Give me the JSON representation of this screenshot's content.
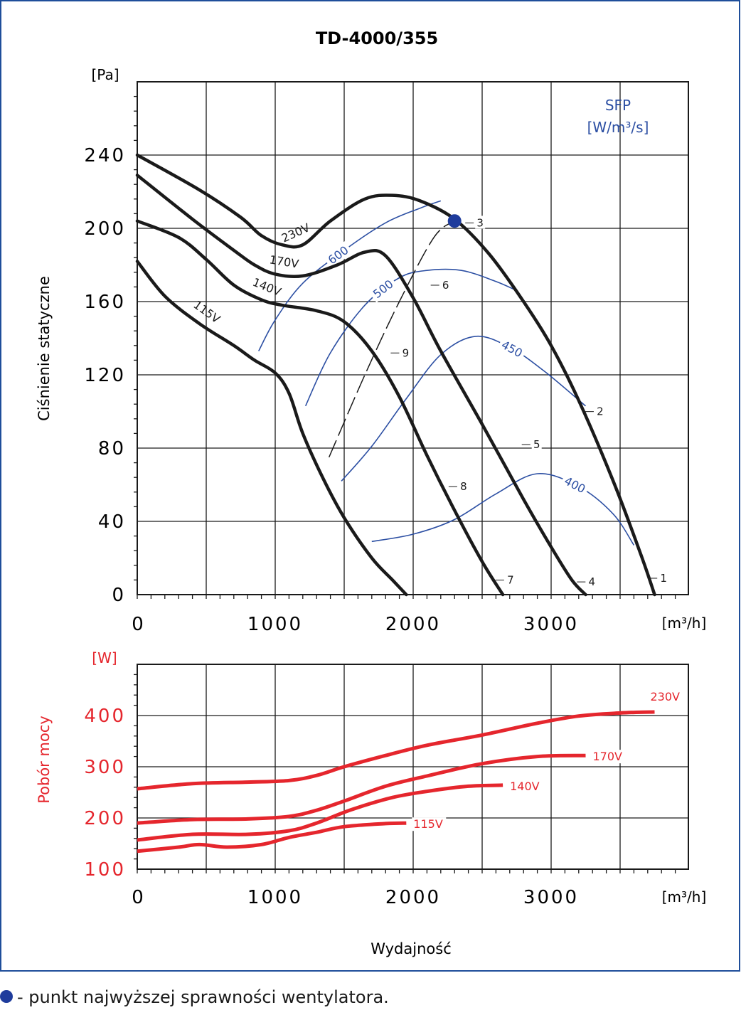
{
  "colors": {
    "frame": "#1f4e9a",
    "sfp": "#2c4fa3",
    "power": "#e5262d",
    "curve": "#1a1a1a",
    "bep": "#1f3c9c"
  },
  "footnote": "- punkt najwyższej sprawności wentylatora.",
  "chart_data": [
    {
      "type": "line",
      "title": "TD-4000/355",
      "ylabel": "Ciśnienie statyczne",
      "xlabel": "",
      "y_unit": "[Pa]",
      "x_unit": "[m³/h]",
      "sfp_label": "SFP",
      "sfp_unit": "[W/m³/s]",
      "xlim": [
        0,
        4000
      ],
      "ylim": [
        0,
        280
      ],
      "x_ticks": [
        "0",
        "1000",
        "2000",
        "3000"
      ],
      "y_ticks": [
        "0",
        "40",
        "80",
        "120",
        "160",
        "200",
        "240"
      ],
      "grid": true,
      "series": [
        {
          "name": "230V",
          "x": [
            0,
            450,
            750,
            900,
            1050,
            1200,
            1400,
            1650,
            1850,
            2050,
            2300,
            2550,
            2800,
            3000,
            3200,
            3450,
            3650,
            3750
          ],
          "y": [
            240,
            221,
            206,
            196,
            191,
            191,
            204,
            216,
            218,
            215,
            205,
            186,
            160,
            136,
            106,
            62,
            22,
            0
          ]
        },
        {
          "name": "170V",
          "x": [
            0,
            400,
            700,
            850,
            1000,
            1200,
            1450,
            1650,
            1800,
            2000,
            2200,
            2500,
            2800,
            3000,
            3150,
            3250
          ],
          "y": [
            229,
            205,
            188,
            180,
            175,
            174,
            180,
            187,
            185,
            162,
            133,
            93,
            52,
            26,
            8,
            0
          ]
        },
        {
          "name": "140V",
          "x": [
            0,
            300,
            500,
            700,
            900,
            1050,
            1300,
            1500,
            1700,
            1900,
            2100,
            2300,
            2500,
            2650
          ],
          "y": [
            204,
            195,
            183,
            169,
            161,
            158,
            155,
            149,
            133,
            108,
            76,
            46,
            18,
            0
          ]
        },
        {
          "name": "115V",
          "x": [
            0,
            200,
            450,
            700,
            850,
            1000,
            1100,
            1200,
            1350,
            1500,
            1700,
            1850,
            1950
          ],
          "y": [
            182,
            163,
            148,
            136,
            128,
            121,
            110,
            88,
            63,
            42,
            20,
            8,
            0
          ]
        }
      ],
      "sfp_curves": [
        {
          "name": "600",
          "x": [
            880,
            1000,
            1200,
            1500,
            1800,
            2050,
            2200
          ],
          "y": [
            133,
            150,
            170,
            188,
            203,
            211,
            215
          ]
        },
        {
          "name": "500",
          "x": [
            1220,
            1400,
            1650,
            1900,
            2100,
            2350,
            2600,
            2750
          ],
          "y": [
            103,
            132,
            158,
            173,
            177,
            177,
            171,
            166
          ]
        },
        {
          "name": "450",
          "x": [
            1480,
            1700,
            1950,
            2200,
            2450,
            2700,
            2950,
            3250
          ],
          "y": [
            62,
            81,
            107,
            131,
            141,
            135,
            122,
            103
          ]
        },
        {
          "name": "400",
          "x": [
            1700,
            2000,
            2300,
            2600,
            2900,
            3200,
            3450,
            3600
          ],
          "y": [
            29,
            33,
            41,
            55,
            66,
            59,
            44,
            27
          ]
        }
      ],
      "operating_line": {
        "x": [
          1390,
          1650,
          1900,
          2150,
          2300
        ],
        "y": [
          75,
          120,
          160,
          195,
          204
        ]
      },
      "best_efficiency_point": {
        "x": 2300,
        "y": 204
      },
      "point_labels": [
        {
          "label": "1",
          "x": 3800,
          "y": 7
        },
        {
          "label": "2",
          "x": 3340,
          "y": 98
        },
        {
          "label": "3",
          "x": 2470,
          "y": 201
        },
        {
          "label": "4",
          "x": 3280,
          "y": 5
        },
        {
          "label": "5",
          "x": 2880,
          "y": 80
        },
        {
          "label": "6",
          "x": 2220,
          "y": 167
        },
        {
          "label": "7",
          "x": 2690,
          "y": 6
        },
        {
          "label": "8",
          "x": 2350,
          "y": 57
        },
        {
          "label": "9",
          "x": 1930,
          "y": 130
        }
      ]
    },
    {
      "type": "line",
      "title": "",
      "ylabel": "Pobór mocy",
      "xlabel": "Wydajność",
      "y_unit": "[W]",
      "x_unit": "[m³/h]",
      "xlim": [
        0,
        4000
      ],
      "ylim": [
        100,
        500
      ],
      "x_ticks": [
        "0",
        "1000",
        "2000",
        "3000"
      ],
      "y_ticks": [
        "100",
        "200",
        "300",
        "400"
      ],
      "grid": true,
      "series": [
        {
          "name": "230V",
          "x": [
            0,
            400,
            800,
            1100,
            1300,
            1500,
            1800,
            2100,
            2500,
            2900,
            3200,
            3500,
            3750
          ],
          "y": [
            257,
            267,
            270,
            273,
            283,
            300,
            322,
            342,
            362,
            385,
            399,
            405,
            407
          ]
        },
        {
          "name": "170V",
          "x": [
            0,
            400,
            800,
            1100,
            1300,
            1500,
            1800,
            2100,
            2500,
            2900,
            3250
          ],
          "y": [
            190,
            197,
            198,
            203,
            215,
            233,
            262,
            282,
            306,
            320,
            322
          ]
        },
        {
          "name": "140V",
          "x": [
            0,
            400,
            800,
            1100,
            1300,
            1550,
            1850,
            2100,
            2400,
            2650
          ],
          "y": [
            157,
            168,
            168,
            175,
            190,
            216,
            240,
            252,
            262,
            264
          ]
        },
        {
          "name": "115V",
          "x": [
            0,
            300,
            450,
            650,
            900,
            1100,
            1300,
            1500,
            1800,
            1950
          ],
          "y": [
            135,
            143,
            148,
            143,
            148,
            162,
            172,
            183,
            189,
            190
          ]
        }
      ]
    }
  ]
}
